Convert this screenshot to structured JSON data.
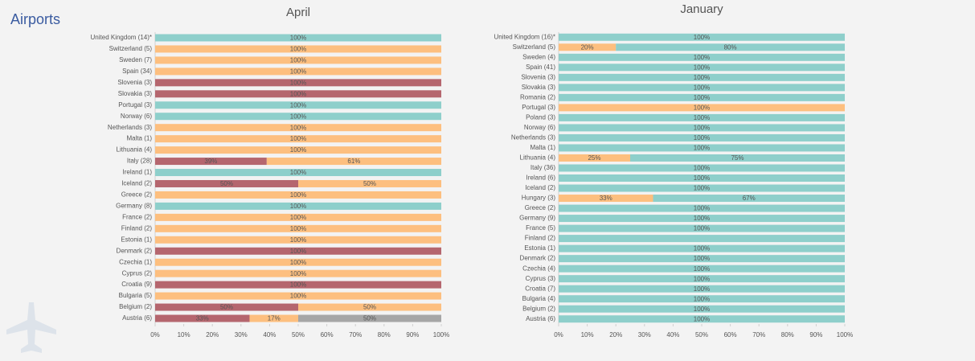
{
  "title": "Airports",
  "chart_data": [
    {
      "type": "bar",
      "orientation": "horizontal",
      "stacked": true,
      "title": "April",
      "categories": [
        "United Kingdom (14)*",
        "Switzerland (5)",
        "Sweden (7)",
        "Spain (34)",
        "Slovenia (3)",
        "Slovakia (3)",
        "Portugal (3)",
        "Norway (6)",
        "Netherlands (3)",
        "Malta (1)",
        "Lithuania (4)",
        "Italy (28)",
        "Ireland (1)",
        "Iceland (2)",
        "Greece (2)",
        "Germany (8)",
        "France (2)",
        "Finland (2)",
        "Estonia (1)",
        "Denmark (2)",
        "Czechia (1)",
        "Cyprus (2)",
        "Croatia (9)",
        "Bulgaria (5)",
        "Belgium (2)",
        "Austria (6)"
      ],
      "series": [
        {
          "color": "#b5666e",
          "values": [
            null,
            null,
            null,
            null,
            100,
            100,
            null,
            null,
            null,
            null,
            null,
            39,
            null,
            50,
            null,
            null,
            null,
            null,
            null,
            100,
            null,
            null,
            100,
            null,
            50,
            33
          ],
          "value_labels": [
            null,
            null,
            null,
            null,
            "100%",
            "100%",
            null,
            null,
            null,
            null,
            null,
            "39%",
            null,
            "50%",
            null,
            null,
            null,
            null,
            null,
            "100%",
            null,
            null,
            "100%",
            null,
            "50%",
            "33%"
          ]
        },
        {
          "color": "#fdbf7f",
          "values": [
            null,
            100,
            100,
            100,
            null,
            null,
            null,
            null,
            100,
            100,
            100,
            61,
            null,
            50,
            100,
            null,
            100,
            100,
            100,
            null,
            100,
            100,
            null,
            100,
            50,
            17
          ],
          "value_labels": [
            null,
            "100%",
            "100%",
            "100%",
            null,
            null,
            null,
            null,
            "100%",
            "100%",
            "100%",
            "61%",
            null,
            "50%",
            "100%",
            null,
            "100%",
            "100%",
            "100%",
            null,
            "100%",
            "100%",
            null,
            "100%",
            "50%",
            "17%"
          ]
        },
        {
          "color": "#8ecfcb",
          "values": [
            100,
            null,
            null,
            null,
            null,
            null,
            100,
            100,
            null,
            null,
            null,
            null,
            100,
            null,
            null,
            100,
            null,
            null,
            null,
            null,
            null,
            null,
            null,
            null,
            null,
            null
          ],
          "value_labels": [
            "100%",
            null,
            null,
            null,
            null,
            null,
            "100%",
            "100%",
            null,
            null,
            null,
            null,
            "100%",
            null,
            null,
            "100%",
            null,
            null,
            null,
            null,
            null,
            null,
            null,
            null,
            null,
            null
          ]
        },
        {
          "color": "#a6a6a6",
          "values": [
            null,
            null,
            null,
            null,
            null,
            null,
            null,
            null,
            null,
            null,
            null,
            null,
            null,
            null,
            null,
            null,
            null,
            null,
            null,
            null,
            null,
            null,
            null,
            null,
            null,
            50
          ],
          "value_labels": [
            null,
            null,
            null,
            null,
            null,
            null,
            null,
            null,
            null,
            null,
            null,
            null,
            null,
            null,
            null,
            null,
            null,
            null,
            null,
            null,
            null,
            null,
            null,
            null,
            null,
            "50%"
          ]
        }
      ],
      "xlim": [
        0,
        100
      ],
      "xticks": [
        {
          "value": 0,
          "label": "0%"
        },
        {
          "value": 10,
          "label": "10%"
        },
        {
          "value": 20,
          "label": "20%"
        },
        {
          "value": 30,
          "label": "30%"
        },
        {
          "value": 40,
          "label": "40%"
        },
        {
          "value": 50,
          "label": "50%"
        },
        {
          "value": 60,
          "label": "60%"
        },
        {
          "value": 70,
          "label": "70%"
        },
        {
          "value": 80,
          "label": "80%"
        },
        {
          "value": 90,
          "label": "90%"
        },
        {
          "value": 100,
          "label": "100%"
        }
      ]
    },
    {
      "type": "bar",
      "orientation": "horizontal",
      "stacked": true,
      "title": "January",
      "categories": [
        "United Kingdom (16)*",
        "Switzerland (5)",
        "Sweden (4)",
        "Spain (41)",
        "Slovenia (3)",
        "Slovakia (3)",
        "Romania (2)",
        "Portugal (3)",
        "Poland (3)",
        "Norway (6)",
        "Netherlands (3)",
        "Malta (1)",
        "Lithuania (4)",
        "Italy (36)",
        "Ireland (6)",
        "Iceland (2)",
        "Hungary (3)",
        "Greece (2)",
        "Germany (9)",
        "France (5)",
        "Finland (2)",
        "Estonia (1)",
        "Denmark (2)",
        "Czechia (4)",
        "Cyprus (3)",
        "Croatia (7)",
        "Bulgaria (4)",
        "Belgium (2)",
        "Austria (6)"
      ],
      "series": [
        {
          "color": "#fdbf7f",
          "values": [
            null,
            20,
            null,
            null,
            null,
            null,
            null,
            100,
            null,
            null,
            null,
            null,
            25,
            null,
            null,
            null,
            33,
            null,
            null,
            null,
            null,
            null,
            null,
            null,
            null,
            null,
            null,
            null,
            null
          ],
          "value_labels": [
            null,
            "20%",
            null,
            null,
            null,
            null,
            null,
            "100%",
            null,
            null,
            null,
            null,
            "25%",
            null,
            null,
            null,
            "33%",
            null,
            null,
            null,
            null,
            null,
            null,
            null,
            null,
            null,
            null,
            null,
            null
          ]
        },
        {
          "color": "#8ecfcb",
          "values": [
            100,
            80,
            100,
            100,
            100,
            100,
            100,
            null,
            100,
            100,
            100,
            100,
            75,
            100,
            100,
            100,
            67,
            100,
            100,
            100,
            100,
            100,
            100,
            100,
            100,
            100,
            100,
            100,
            100
          ],
          "value_labels": [
            "100%",
            "80%",
            "100%",
            "100%",
            "100%",
            "100%",
            "100%",
            null,
            "100%",
            "100%",
            "100%",
            "100%",
            "75%",
            "100%",
            "100%",
            "100%",
            "67%",
            "100%",
            "100%",
            "100%",
            null,
            "100%",
            "100%",
            "100%",
            "100%",
            "100%",
            "100%",
            "100%",
            "100%"
          ]
        }
      ],
      "xlim": [
        0,
        100
      ],
      "xticks": [
        {
          "value": 0,
          "label": "0%"
        },
        {
          "value": 10,
          "label": "10%"
        },
        {
          "value": 20,
          "label": "20%"
        },
        {
          "value": 30,
          "label": "30%"
        },
        {
          "value": 40,
          "label": "40%"
        },
        {
          "value": 50,
          "label": "50%"
        },
        {
          "value": 60,
          "label": "60%"
        },
        {
          "value": 70,
          "label": "70%"
        },
        {
          "value": 80,
          "label": "80%"
        },
        {
          "value": 90,
          "label": "90%"
        },
        {
          "value": 100,
          "label": "100%"
        }
      ]
    }
  ]
}
